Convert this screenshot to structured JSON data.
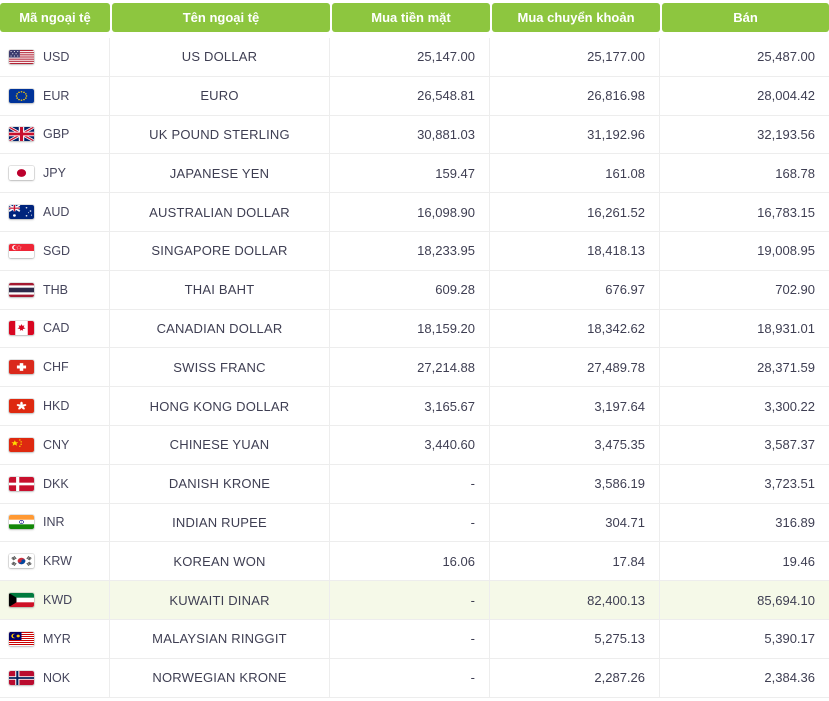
{
  "table": {
    "headers": [
      {
        "id": "code",
        "label": "Mã ngoại tệ"
      },
      {
        "id": "name",
        "label": "Tên ngoại tệ"
      },
      {
        "id": "cash_buy",
        "label": "Mua tiền mặt"
      },
      {
        "id": "transfer_buy",
        "label": "Mua chuyển khoản"
      },
      {
        "id": "sell",
        "label": "Bán"
      }
    ],
    "rows": [
      {
        "flag": "usd-flag",
        "code": "USD",
        "name": "US DOLLAR",
        "cash_buy": "25,147.00",
        "transfer_buy": "25,177.00",
        "sell": "25,487.00",
        "highlighted": false
      },
      {
        "flag": "eur-flag",
        "code": "EUR",
        "name": "EURO",
        "cash_buy": "26,548.81",
        "transfer_buy": "26,816.98",
        "sell": "28,004.42",
        "highlighted": false
      },
      {
        "flag": "gbp-flag",
        "code": "GBP",
        "name": "UK POUND STERLING",
        "cash_buy": "30,881.03",
        "transfer_buy": "31,192.96",
        "sell": "32,193.56",
        "highlighted": false
      },
      {
        "flag": "jpy-flag",
        "code": "JPY",
        "name": "JAPANESE YEN",
        "cash_buy": "159.47",
        "transfer_buy": "161.08",
        "sell": "168.78",
        "highlighted": false
      },
      {
        "flag": "aud-flag",
        "code": "AUD",
        "name": "AUSTRALIAN DOLLAR",
        "cash_buy": "16,098.90",
        "transfer_buy": "16,261.52",
        "sell": "16,783.15",
        "highlighted": false
      },
      {
        "flag": "sgd-flag",
        "code": "SGD",
        "name": "SINGAPORE DOLLAR",
        "cash_buy": "18,233.95",
        "transfer_buy": "18,418.13",
        "sell": "19,008.95",
        "highlighted": false
      },
      {
        "flag": "thb-flag",
        "code": "THB",
        "name": "THAI BAHT",
        "cash_buy": "609.28",
        "transfer_buy": "676.97",
        "sell": "702.90",
        "highlighted": false
      },
      {
        "flag": "cad-flag",
        "code": "CAD",
        "name": "CANADIAN DOLLAR",
        "cash_buy": "18,159.20",
        "transfer_buy": "18,342.62",
        "sell": "18,931.01",
        "highlighted": false
      },
      {
        "flag": "chf-flag",
        "code": "CHF",
        "name": "SWISS FRANC",
        "cash_buy": "27,214.88",
        "transfer_buy": "27,489.78",
        "sell": "28,371.59",
        "highlighted": false
      },
      {
        "flag": "hkd-flag",
        "code": "HKD",
        "name": "HONG KONG DOLLAR",
        "cash_buy": "3,165.67",
        "transfer_buy": "3,197.64",
        "sell": "3,300.22",
        "highlighted": false
      },
      {
        "flag": "cny-flag",
        "code": "CNY",
        "name": "CHINESE YUAN",
        "cash_buy": "3,440.60",
        "transfer_buy": "3,475.35",
        "sell": "3,587.37",
        "highlighted": false
      },
      {
        "flag": "dkk-flag",
        "code": "DKK",
        "name": "DANISH KRONE",
        "cash_buy": "-",
        "transfer_buy": "3,586.19",
        "sell": "3,723.51",
        "highlighted": false
      },
      {
        "flag": "inr-flag",
        "code": "INR",
        "name": "INDIAN RUPEE",
        "cash_buy": "-",
        "transfer_buy": "304.71",
        "sell": "316.89",
        "highlighted": false
      },
      {
        "flag": "krw-flag",
        "code": "KRW",
        "name": "KOREAN WON",
        "cash_buy": "16.06",
        "transfer_buy": "17.84",
        "sell": "19.46",
        "highlighted": false
      },
      {
        "flag": "kwd-flag",
        "code": "KWD",
        "name": "KUWAITI DINAR",
        "cash_buy": "-",
        "transfer_buy": "82,400.13",
        "sell": "85,694.10",
        "highlighted": true
      },
      {
        "flag": "myr-flag",
        "code": "MYR",
        "name": "MALAYSIAN RINGGIT",
        "cash_buy": "-",
        "transfer_buy": "5,275.13",
        "sell": "5,390.17",
        "highlighted": false
      },
      {
        "flag": "nok-flag",
        "code": "NOK",
        "name": "NORWEGIAN KRONE",
        "cash_buy": "-",
        "transfer_buy": "2,287.26",
        "sell": "2,384.36",
        "highlighted": false
      }
    ]
  },
  "colors": {
    "header_bg": "#8DC63F",
    "header_text": "#FFFFFF",
    "body_text": "#3E3E52",
    "row_border": "#EDEDED",
    "highlight_row_bg": "#F5F9E8"
  }
}
